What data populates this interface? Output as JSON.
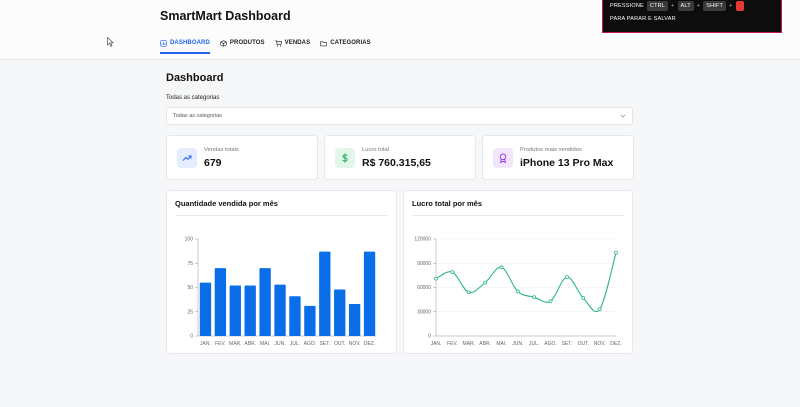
{
  "app": {
    "title": "SmartMart Dashboard"
  },
  "nav": [
    {
      "label": "DASHBOARD",
      "icon": "dashboard-icon",
      "active": true
    },
    {
      "label": "PRODUTOS",
      "icon": "package-icon",
      "active": false
    },
    {
      "label": "VENDAS",
      "icon": "cart-icon",
      "active": false
    },
    {
      "label": "CATEGORIAS",
      "icon": "folder-icon",
      "active": false
    }
  ],
  "recorder": {
    "press_label": "PRESSIONE",
    "keys": [
      "CTRL",
      "ALT",
      "SHIFT"
    ],
    "plus": "+",
    "stop_label": "PARA PARAR E SALVAR"
  },
  "page": {
    "title": "Dashboard",
    "filter_label": "Todas as categorias",
    "filter_value": "Todas as categorias"
  },
  "stats": [
    {
      "label": "Vendas totais",
      "value": "679",
      "icon": "trending-up-icon",
      "color": "#2563eb",
      "bg": "#e4edfd"
    },
    {
      "label": "Lucro total",
      "value": "R$ 760.315,65",
      "icon": "dollar-icon",
      "color": "#16a34a",
      "bg": "#e2f7ea"
    },
    {
      "label": "Produtos mais vendidos",
      "value": "iPhone 13 Pro Max",
      "icon": "award-icon",
      "color": "#9333ea",
      "bg": "#f1e6fc"
    }
  ],
  "chart_data": [
    {
      "type": "bar",
      "title": "Quantidade vendida por mês",
      "categories": [
        "JAN.",
        "FEV.",
        "MAR.",
        "ABR.",
        "MAI.",
        "JUN.",
        "JUL.",
        "AGO.",
        "SET.",
        "OUT.",
        "NOV.",
        "DEZ."
      ],
      "values": [
        55,
        70,
        52,
        52,
        70,
        53,
        41,
        31,
        87,
        48,
        33,
        87
      ],
      "ylim": [
        0,
        100
      ],
      "yticks": [
        0,
        25,
        50,
        75,
        100
      ],
      "color": "#0a6ee8"
    },
    {
      "type": "line",
      "title": "Lucro total por mês",
      "categories": [
        "JAN.",
        "FEV.",
        "MAR.",
        "ABR.",
        "MAI.",
        "JUN.",
        "JUL.",
        "AGO.",
        "SET.",
        "OUT.",
        "NOV.",
        "DEZ."
      ],
      "values": [
        71000,
        79000,
        54000,
        66000,
        85000,
        55000,
        48000,
        43000,
        73000,
        47000,
        33000,
        103000
      ],
      "ylim": [
        0,
        120000
      ],
      "yticks": [
        0,
        30000,
        60000,
        90000,
        120000
      ],
      "color": "#2fb48c"
    }
  ]
}
